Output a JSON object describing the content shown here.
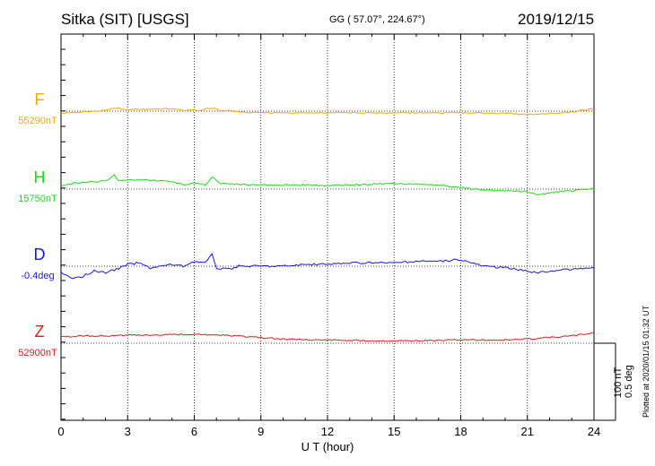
{
  "header": {
    "station": "Sitka (SIT)  [USGS]",
    "coords": "GG ( 57.07°, 224.67°)",
    "date": "2019/12/15"
  },
  "side_note": "Plotted at 2020/01/15 01:32 UT",
  "scale_labels": [
    "100 nT",
    "0.5 deg"
  ],
  "chart_data": {
    "type": "line",
    "title": "Sitka (SIT)  [USGS]",
    "xlabel": "U T (hour)",
    "xlim": [
      0,
      24
    ],
    "xticks": [
      0,
      3,
      6,
      9,
      12,
      15,
      18,
      21,
      24
    ],
    "grid": true,
    "channels": [
      {
        "name": "F",
        "baseline_label": "55290nT",
        "color": "#f0a800",
        "unit": "nT",
        "x": [
          0,
          1,
          2,
          2.5,
          3,
          4,
          4.8,
          5.5,
          6.2,
          6.8,
          7.2,
          8,
          9,
          10,
          12,
          14,
          16,
          18,
          19,
          20,
          21,
          21.5,
          22,
          23,
          24
        ],
        "y": [
          -3,
          -1,
          1,
          4,
          2,
          2,
          3,
          1,
          1,
          4,
          1,
          -1,
          -2,
          -2,
          -2,
          -2,
          -2,
          -2,
          -2,
          -3,
          -4,
          -4,
          -3,
          -1,
          3
        ]
      },
      {
        "name": "H",
        "baseline_label": "15750nT",
        "color": "#18dc18",
        "unit": "nT",
        "x": [
          0,
          0.5,
          1,
          1.5,
          2,
          2.4,
          2.6,
          3,
          3.5,
          4,
          4.8,
          5.5,
          6,
          6.5,
          6.8,
          7.2,
          8,
          9,
          10,
          11,
          12,
          13,
          14,
          15,
          16,
          17,
          18,
          18.5,
          19,
          20,
          21,
          21.5,
          22,
          22.5,
          23,
          24
        ],
        "y": [
          3,
          7,
          8,
          9,
          10,
          17,
          10,
          11,
          12,
          11,
          10,
          6,
          7,
          5,
          15,
          7,
          6,
          5,
          5,
          5,
          4,
          5,
          6,
          7,
          6,
          5,
          2,
          0,
          -1,
          -2,
          -3,
          -7,
          -5,
          -3,
          -2,
          1
        ]
      },
      {
        "name": "D",
        "baseline_label": "-0.4deg",
        "color": "#1818e0",
        "unit": "deg",
        "x": [
          0,
          0.5,
          1,
          1.5,
          2,
          2.5,
          3,
          3.5,
          4,
          4.5,
          5,
          5.5,
          6,
          6.5,
          6.8,
          7,
          7.5,
          8,
          9,
          10,
          11,
          12,
          13,
          14,
          15,
          16,
          17,
          18,
          18.5,
          19,
          20,
          21,
          21.5,
          22,
          23,
          24
        ],
        "y": [
          -0.04,
          -0.08,
          -0.06,
          -0.03,
          -0.04,
          -0.02,
          0.01,
          0.02,
          -0.01,
          0.0,
          0.01,
          0.0,
          0.03,
          0.02,
          0.07,
          -0.01,
          -0.02,
          0.0,
          0.0,
          0.0,
          0.01,
          0.01,
          0.02,
          0.02,
          0.02,
          0.03,
          0.03,
          0.04,
          0.02,
          0.0,
          -0.01,
          -0.03,
          -0.04,
          -0.03,
          -0.02,
          -0.01
        ]
      },
      {
        "name": "Z",
        "baseline_label": "52900nT",
        "color": "#e81818",
        "unit": "nT",
        "x": [
          0,
          1,
          2,
          3,
          4,
          5,
          6,
          7,
          8,
          9,
          10,
          12,
          14,
          16,
          18,
          19,
          20,
          21,
          22,
          23,
          24
        ],
        "y": [
          8,
          9,
          9,
          10,
          10,
          11,
          11,
          10,
          9,
          7,
          5,
          4,
          3,
          3,
          4,
          4,
          4,
          5,
          7,
          9,
          13
        ]
      }
    ]
  }
}
